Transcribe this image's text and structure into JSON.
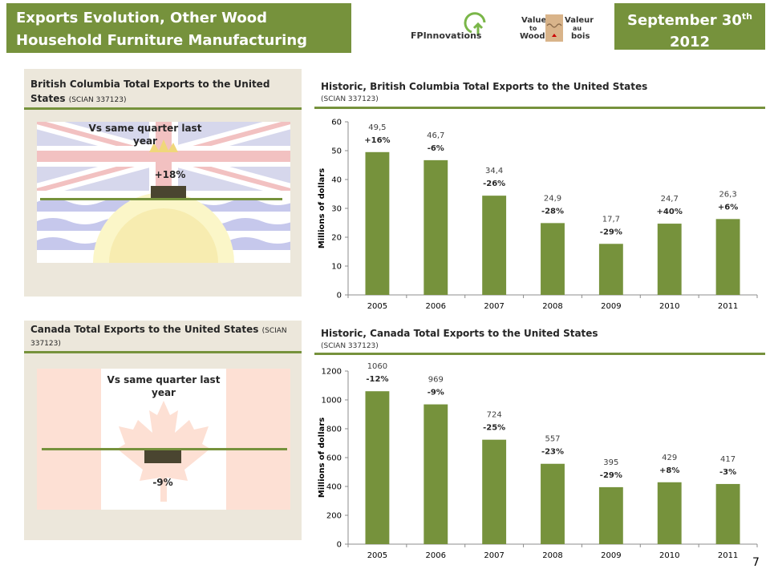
{
  "header": {
    "title_line1": "Exports Evolution, Other Wood",
    "title_line2": "Household Furniture Manufacturing",
    "date_main": "September 30",
    "date_sup": "th",
    "date_year": "2012"
  },
  "logos": {
    "fp_name": "FPInnovations",
    "vtw_line1": "Value",
    "vtw_line2": "to",
    "vtw_line3": "Wood",
    "vab_line1": "Valeur",
    "vab_line2": "au",
    "vab_line3": "bois"
  },
  "bc_panel": {
    "title": "British Columbia Total Exports to the United States",
    "code": "(SCIAN  337123)",
    "label_line1": "Vs same quarter last",
    "label_line2": "year",
    "change": "+18%",
    "change_value": 18
  },
  "canada_panel": {
    "title": "Canada Total Exports to the United States",
    "code": "(SCIAN 337123)",
    "label_line1": "Vs same quarter last",
    "label_line2": "year",
    "change": "-9%",
    "change_value": -9
  },
  "page_number": "7",
  "colors": {
    "accent": "#76923c",
    "bar": "#76923c",
    "indicator": "#4a4530"
  },
  "chart_data": [
    {
      "type": "bar",
      "title": "Historic, British Columbia Total Exports to the United States",
      "subtitle": "(SCIAN 337123)",
      "ylabel": "Millions of dollars",
      "ylim": [
        0,
        60
      ],
      "yticks": [
        0,
        10,
        20,
        30,
        40,
        50,
        60
      ],
      "categories": [
        "2005",
        "2006",
        "2007",
        "2008",
        "2009",
        "2010",
        "2011"
      ],
      "values": [
        49.5,
        46.7,
        34.4,
        24.9,
        17.7,
        24.7,
        26.3
      ],
      "value_labels": [
        "49,5",
        "46,7",
        "34,4",
        "24,9",
        "17,7",
        "24,7",
        "26,3"
      ],
      "change_labels": [
        "+16%",
        "-6%",
        "-26%",
        "-28%",
        "-29%",
        "+40%",
        "+6%"
      ],
      "grid": false
    },
    {
      "type": "bar",
      "title": "Historic, Canada Total Exports to the United States",
      "subtitle": "(SCIAN 337123)",
      "ylabel": "Millions of dollars",
      "ylim": [
        0,
        1200
      ],
      "yticks": [
        0,
        200,
        400,
        600,
        800,
        1000,
        1200
      ],
      "categories": [
        "2005",
        "2006",
        "2007",
        "2008",
        "2009",
        "2010",
        "2011"
      ],
      "values": [
        1060,
        969,
        724,
        557,
        395,
        429,
        417
      ],
      "value_labels": [
        "1060",
        "969",
        "724",
        "557",
        "395",
        "429",
        "417"
      ],
      "change_labels": [
        "-12%",
        "-9%",
        "-25%",
        "-23%",
        "-29%",
        "+8%",
        "-3%"
      ],
      "grid": false
    }
  ]
}
